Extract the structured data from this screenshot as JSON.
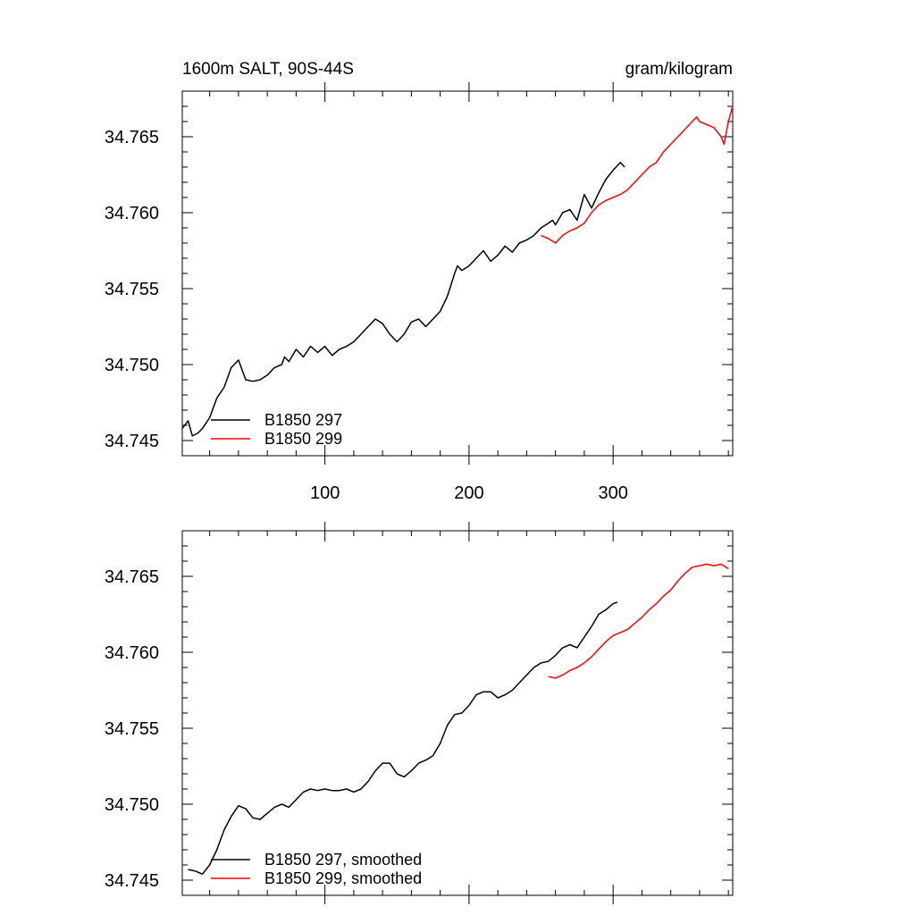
{
  "colors": {
    "series_297": "#000000",
    "series_299": "#ff0000"
  },
  "chart_data": [
    {
      "type": "line",
      "title_left": "1600m SALT, 90S-44S",
      "title_right": "gram/kilogram",
      "xlabel": "",
      "ylabel": "",
      "xlim": [
        1,
        383
      ],
      "ylim": [
        34.744,
        34.768
      ],
      "xticks": [
        100,
        200,
        300
      ],
      "yticks": [
        34.745,
        34.75,
        34.755,
        34.76,
        34.765
      ],
      "ytick_labels": [
        "34.745",
        "34.750",
        "34.755",
        "34.760",
        "34.765"
      ],
      "xtick_labels": [
        "100",
        "200",
        "300"
      ],
      "legend_position": "bottom-left",
      "series": [
        {
          "name": "B1850 297",
          "color": "#000000",
          "x": [
            1,
            5,
            8,
            12,
            15,
            20,
            25,
            30,
            35,
            40,
            45,
            50,
            55,
            60,
            65,
            70,
            72,
            75,
            80,
            85,
            90,
            95,
            100,
            105,
            110,
            115,
            120,
            125,
            130,
            135,
            140,
            145,
            150,
            155,
            160,
            165,
            170,
            175,
            180,
            185,
            190,
            192,
            195,
            200,
            205,
            210,
            215,
            220,
            225,
            230,
            235,
            240,
            245,
            250,
            255,
            258,
            260,
            265,
            270,
            275,
            280,
            285,
            290,
            295,
            300,
            305,
            308
          ],
          "y": [
            34.7458,
            34.7463,
            34.7453,
            34.7455,
            34.7458,
            34.7465,
            34.7478,
            34.7485,
            34.7498,
            34.7503,
            34.749,
            34.7489,
            34.749,
            34.7493,
            34.7498,
            34.75,
            34.7505,
            34.7502,
            34.751,
            34.7505,
            34.7512,
            34.7508,
            34.7512,
            34.7506,
            34.751,
            34.7512,
            34.7515,
            34.752,
            34.7525,
            34.753,
            34.7527,
            34.752,
            34.7515,
            34.752,
            34.7528,
            34.753,
            34.7525,
            34.753,
            34.7535,
            34.7545,
            34.756,
            34.7565,
            34.7562,
            34.7565,
            34.757,
            34.7575,
            34.7568,
            34.7572,
            34.7578,
            34.7574,
            34.758,
            34.7582,
            34.7585,
            34.759,
            34.7593,
            34.7595,
            34.7592,
            34.76,
            34.7602,
            34.7595,
            34.7612,
            34.7603,
            34.7613,
            34.7622,
            34.7628,
            34.7633,
            34.763
          ]
        },
        {
          "name": "B1850 299",
          "color": "#ff0000",
          "x": [
            250,
            255,
            260,
            265,
            270,
            275,
            280,
            285,
            290,
            295,
            300,
            305,
            310,
            315,
            320,
            325,
            330,
            335,
            340,
            345,
            350,
            355,
            358,
            360,
            365,
            370,
            375,
            377,
            380,
            383
          ],
          "y": [
            34.7585,
            34.7583,
            34.758,
            34.7585,
            34.7588,
            34.759,
            34.7593,
            34.76,
            34.7605,
            34.7608,
            34.761,
            34.7612,
            34.7615,
            34.762,
            34.7625,
            34.763,
            34.7633,
            34.764,
            34.7645,
            34.765,
            34.7655,
            34.766,
            34.7663,
            34.766,
            34.7658,
            34.7656,
            34.765,
            34.7645,
            34.766,
            34.767
          ]
        }
      ],
      "legend": [
        "B1850 297",
        "B1850 299"
      ]
    },
    {
      "type": "line",
      "xlabel": "",
      "ylabel": "",
      "xlim": [
        1,
        383
      ],
      "ylim": [
        34.744,
        34.768
      ],
      "xticks": [
        100,
        200,
        300
      ],
      "yticks": [
        34.745,
        34.75,
        34.755,
        34.76,
        34.765
      ],
      "ytick_labels": [
        "34.745",
        "34.750",
        "34.755",
        "34.760",
        "34.765"
      ],
      "legend_position": "bottom-left",
      "series": [
        {
          "name": "B1850 297, smoothed",
          "color": "#000000",
          "x": [
            5,
            10,
            15,
            20,
            25,
            30,
            35,
            40,
            45,
            50,
            55,
            60,
            65,
            70,
            75,
            80,
            85,
            90,
            95,
            100,
            105,
            110,
            115,
            120,
            125,
            130,
            135,
            140,
            145,
            150,
            155,
            160,
            165,
            170,
            175,
            180,
            185,
            190,
            195,
            200,
            205,
            210,
            215,
            220,
            225,
            230,
            235,
            240,
            245,
            250,
            255,
            260,
            265,
            270,
            275,
            280,
            285,
            290,
            295,
            300,
            303
          ],
          "y": [
            34.7457,
            34.7456,
            34.7454,
            34.746,
            34.747,
            34.7483,
            34.7492,
            34.7499,
            34.7497,
            34.7491,
            34.749,
            34.7494,
            34.7498,
            34.75,
            34.7498,
            34.7503,
            34.7508,
            34.751,
            34.7509,
            34.751,
            34.7509,
            34.7509,
            34.751,
            34.7508,
            34.751,
            34.7515,
            34.7522,
            34.7527,
            34.7527,
            34.752,
            34.7518,
            34.7522,
            34.7527,
            34.7529,
            34.7532,
            34.754,
            34.7552,
            34.7559,
            34.756,
            34.7565,
            34.7572,
            34.7574,
            34.7574,
            34.757,
            34.7572,
            34.7575,
            34.758,
            34.7585,
            34.759,
            34.7593,
            34.7594,
            34.7598,
            34.7603,
            34.7605,
            34.7603,
            34.761,
            34.7617,
            34.7625,
            34.7628,
            34.7632,
            34.7633
          ]
        },
        {
          "name": "B1850 299, smoothed",
          "color": "#ff0000",
          "x": [
            255,
            260,
            265,
            270,
            275,
            280,
            285,
            290,
            295,
            300,
            305,
            310,
            315,
            320,
            325,
            330,
            335,
            340,
            345,
            350,
            355,
            360,
            365,
            370,
            375,
            380
          ],
          "y": [
            34.7584,
            34.7583,
            34.7585,
            34.7588,
            34.759,
            34.7593,
            34.7597,
            34.7602,
            34.7607,
            34.7611,
            34.7613,
            34.7615,
            34.7619,
            34.7623,
            34.7628,
            34.7632,
            34.7637,
            34.7641,
            34.7647,
            34.7652,
            34.7656,
            34.7657,
            34.7658,
            34.7657,
            34.7658,
            34.7655
          ]
        }
      ],
      "legend": [
        "B1850 297, smoothed",
        "B1850 299, smoothed"
      ]
    }
  ]
}
